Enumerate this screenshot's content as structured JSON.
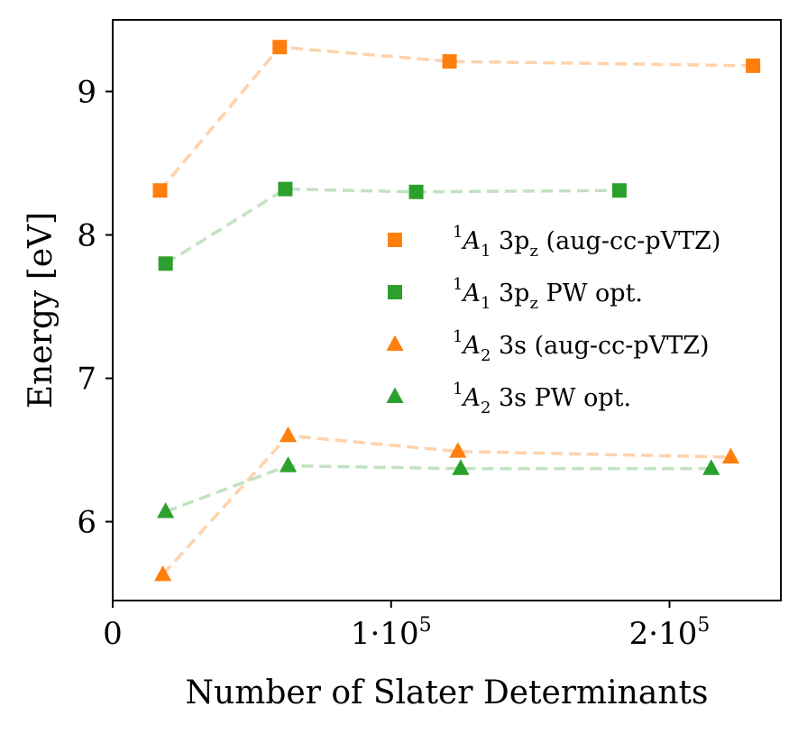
{
  "chart_data": {
    "type": "scatter",
    "title": "",
    "xlabel": "Number of Slater Determinants",
    "ylabel": "Energy [eV]",
    "xlim": [
      0,
      240000
    ],
    "ylim": [
      5.45,
      9.5
    ],
    "xticks": [
      {
        "value": 0,
        "mantissa": "0",
        "exp": ""
      },
      {
        "value": 100000,
        "mantissa": "1·10",
        "exp": "5"
      },
      {
        "value": 200000,
        "mantissa": "2·10",
        "exp": "5"
      }
    ],
    "yticks": [
      {
        "value": 6,
        "label": "6"
      },
      {
        "value": 7,
        "label": "7"
      },
      {
        "value": 8,
        "label": "8"
      },
      {
        "value": 9,
        "label": "9"
      }
    ],
    "legend_position": "center-right",
    "series": [
      {
        "name": "1A1 3pz (aug-cc-pVTZ)",
        "legend": {
          "sup": "1",
          "sym": "A",
          "sub": "1",
          "state": "3p",
          "state_sub": "z",
          "rest": " (aug-cc-pVTZ)"
        },
        "marker": "square",
        "color": "#ff7f0e",
        "line_color": "#ffd2ab",
        "x": [
          17000,
          60000,
          121000,
          230000
        ],
        "y": [
          8.31,
          9.31,
          9.21,
          9.18
        ]
      },
      {
        "name": "1A1 3pz PW opt.",
        "legend": {
          "sup": "1",
          "sym": "A",
          "sub": "1",
          "state": "3p",
          "state_sub": "z",
          "rest": " PW opt."
        },
        "marker": "square",
        "color": "#2ca02c",
        "line_color": "#c2e2c2",
        "x": [
          19000,
          62000,
          109000,
          182000
        ],
        "y": [
          7.8,
          8.32,
          8.3,
          8.31
        ]
      },
      {
        "name": "1A2 3s (aug-cc-pVTZ)",
        "legend": {
          "sup": "1",
          "sym": "A",
          "sub": "2",
          "state": "3s",
          "state_sub": "",
          "rest": " (aug-cc-pVTZ)"
        },
        "marker": "triangle",
        "color": "#ff7f0e",
        "line_color": "#ffd2ab",
        "x": [
          18000,
          63000,
          124000,
          222000
        ],
        "y": [
          5.63,
          6.6,
          6.49,
          6.45
        ]
      },
      {
        "name": "1A2 3s PW opt.",
        "legend": {
          "sup": "1",
          "sym": "A",
          "sub": "2",
          "state": "3s",
          "state_sub": "",
          "rest": " PW opt."
        },
        "marker": "triangle",
        "color": "#2ca02c",
        "line_color": "#c2e2c2",
        "x": [
          19000,
          63000,
          125000,
          215000
        ],
        "y": [
          6.07,
          6.39,
          6.37,
          6.37
        ]
      }
    ]
  }
}
